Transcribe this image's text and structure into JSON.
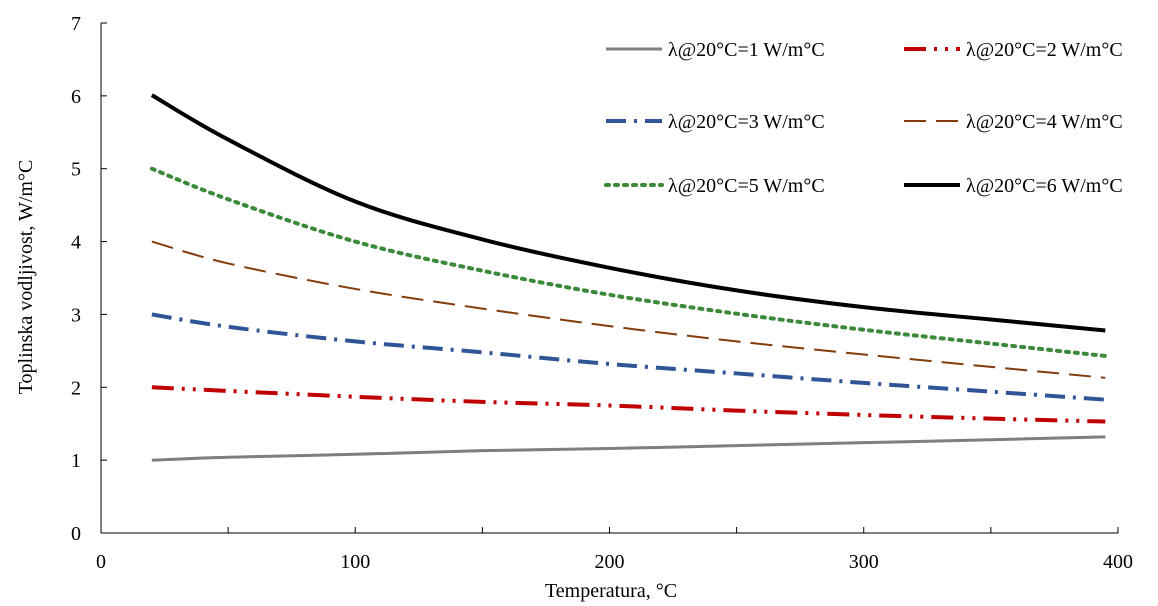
{
  "chart_data": {
    "type": "line",
    "xlabel": "Temperatura, °C",
    "ylabel": "Toplinska  vodljivost,  W/m°C",
    "xlim": [
      0,
      400
    ],
    "ylim": [
      0,
      7
    ],
    "xticks": [
      0,
      100,
      200,
      300,
      400
    ],
    "xminor_ticks": [
      50,
      150,
      250,
      350
    ],
    "yticks": [
      0,
      1,
      2,
      3,
      4,
      5,
      6,
      7
    ],
    "grid": false,
    "legend_position": "top-right",
    "x": [
      20,
      50,
      100,
      150,
      200,
      250,
      300,
      350,
      395
    ],
    "series": [
      {
        "name": "λ@20°C=1 W/m°C",
        "color": "#7f7f7f",
        "dash": "solid",
        "width": 3,
        "values": [
          1.0,
          1.04,
          1.08,
          1.13,
          1.16,
          1.2,
          1.24,
          1.28,
          1.32
        ]
      },
      {
        "name": "λ@20°C=2 W/m°C",
        "color": "#c00000",
        "dash": "dash-dot-dot",
        "width": 4,
        "values": [
          2.0,
          1.95,
          1.87,
          1.8,
          1.75,
          1.68,
          1.62,
          1.57,
          1.53
        ]
      },
      {
        "name": "λ@20°C=3 W/m°C",
        "color": "#2f5597",
        "dash": "dash-dot",
        "width": 4,
        "values": [
          3.0,
          2.83,
          2.63,
          2.48,
          2.32,
          2.19,
          2.06,
          1.94,
          1.83
        ]
      },
      {
        "name": "λ@20°C=4 W/m°C",
        "color": "#843c0c",
        "dash": "dash",
        "width": 2,
        "values": [
          4.0,
          3.7,
          3.35,
          3.08,
          2.84,
          2.63,
          2.45,
          2.28,
          2.13
        ]
      },
      {
        "name": "λ@20°C=5 W/m°C",
        "color": "#3a8a3a",
        "dash": "dot",
        "width": 4,
        "values": [
          5.0,
          4.58,
          4.0,
          3.6,
          3.27,
          3.01,
          2.79,
          2.6,
          2.43
        ]
      },
      {
        "name": "λ@20°C=6 W/m°C",
        "color": "#000000",
        "dash": "solid",
        "width": 4,
        "values": [
          6.01,
          5.4,
          4.55,
          4.03,
          3.64,
          3.33,
          3.1,
          2.93,
          2.78
        ]
      }
    ]
  }
}
